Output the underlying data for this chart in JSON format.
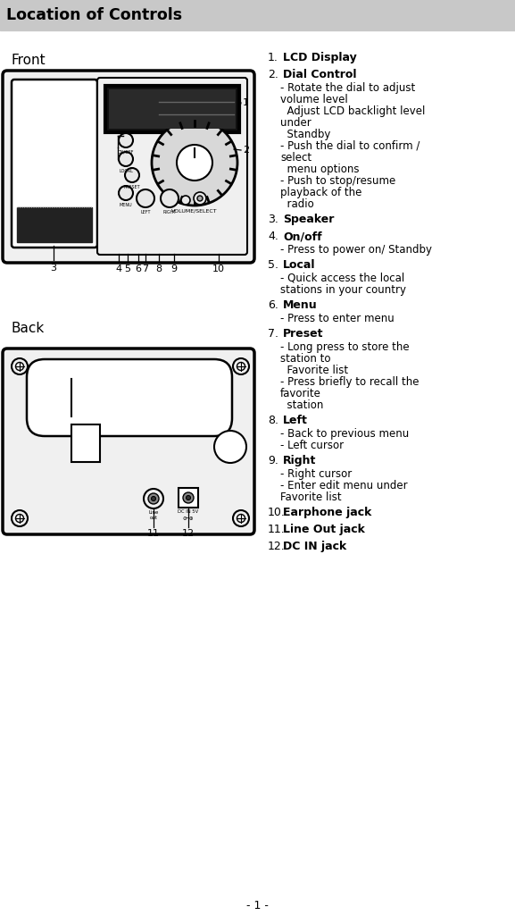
{
  "title": "Location of Controls",
  "title_bg": "#cccccc",
  "page_bg": "#ffffff",
  "front_label": "Front",
  "back_label": "Back",
  "page_number": "- 1 -",
  "controls": [
    {
      "num": "1.",
      "bold": "LCD Display",
      "rest": []
    },
    {
      "num": "2.",
      "bold": "Dial Control",
      "rest": [
        "- Rotate the dial to adjust",
        "volume level",
        "  Adjust LCD backlight level",
        "under",
        "  Standby",
        "- Push the dial to confirm /",
        "select",
        "  menu options",
        "- Push to stop/resume",
        "playback of the",
        "  radio"
      ]
    },
    {
      "num": "3.",
      "bold": "Speaker",
      "rest": []
    },
    {
      "num": "4.",
      "bold": "On/off",
      "rest": [
        "- Press to power on/ Standby"
      ]
    },
    {
      "num": "5.",
      "bold": "Local",
      "rest": [
        "- Quick access the local",
        "stations in your country"
      ]
    },
    {
      "num": "6.",
      "bold": "Menu",
      "rest": [
        "- Press to enter menu"
      ]
    },
    {
      "num": "7.",
      "bold": "Preset",
      "rest": [
        "- Long press to store the",
        "station to",
        "  Favorite list",
        "- Press briefly to recall the",
        "favorite",
        "  station"
      ]
    },
    {
      "num": "8.",
      "bold": "Left",
      "rest": [
        "- Back to previous menu",
        "- Left cursor"
      ]
    },
    {
      "num": "9.",
      "bold": "Right",
      "rest": [
        "- Right cursor",
        "- Enter edit menu under",
        "Favorite list"
      ]
    },
    {
      "num": "10.",
      "bold": "Earphone jack",
      "rest": []
    },
    {
      "num": "11.",
      "bold": "Line Out jack",
      "rest": []
    },
    {
      "num": "12.",
      "bold": "DC IN jack",
      "rest": []
    }
  ]
}
